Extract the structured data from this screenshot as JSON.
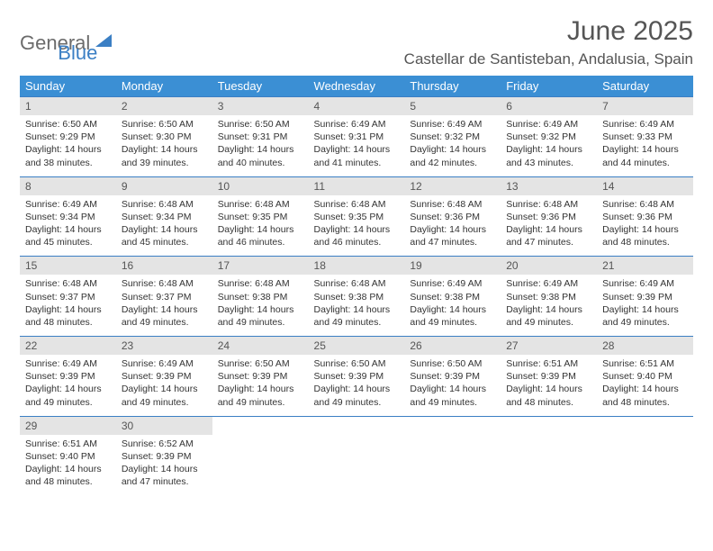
{
  "brand": {
    "part1": "General",
    "part2": "Blue"
  },
  "title": {
    "month": "June 2025",
    "location": "Castellar de Santisteban, Andalusia, Spain"
  },
  "colors": {
    "header_bg": "#3b8fd4",
    "header_fg": "#ffffff",
    "row_border": "#3b7fc4",
    "daynum_bg": "#e4e4e4",
    "brand_grey": "#6b6b6b",
    "brand_blue": "#3b7fc4",
    "page_bg": "#ffffff"
  },
  "layout": {
    "cols": 7,
    "rows": 5,
    "cell_font_pt": 10.5,
    "header_font_pt": 13
  },
  "weekdays": [
    "Sunday",
    "Monday",
    "Tuesday",
    "Wednesday",
    "Thursday",
    "Friday",
    "Saturday"
  ],
  "days": [
    {
      "n": "1",
      "sr": "6:50 AM",
      "ss": "9:29 PM",
      "dl": "14 hours and 38 minutes."
    },
    {
      "n": "2",
      "sr": "6:50 AM",
      "ss": "9:30 PM",
      "dl": "14 hours and 39 minutes."
    },
    {
      "n": "3",
      "sr": "6:50 AM",
      "ss": "9:31 PM",
      "dl": "14 hours and 40 minutes."
    },
    {
      "n": "4",
      "sr": "6:49 AM",
      "ss": "9:31 PM",
      "dl": "14 hours and 41 minutes."
    },
    {
      "n": "5",
      "sr": "6:49 AM",
      "ss": "9:32 PM",
      "dl": "14 hours and 42 minutes."
    },
    {
      "n": "6",
      "sr": "6:49 AM",
      "ss": "9:32 PM",
      "dl": "14 hours and 43 minutes."
    },
    {
      "n": "7",
      "sr": "6:49 AM",
      "ss": "9:33 PM",
      "dl": "14 hours and 44 minutes."
    },
    {
      "n": "8",
      "sr": "6:49 AM",
      "ss": "9:34 PM",
      "dl": "14 hours and 45 minutes."
    },
    {
      "n": "9",
      "sr": "6:48 AM",
      "ss": "9:34 PM",
      "dl": "14 hours and 45 minutes."
    },
    {
      "n": "10",
      "sr": "6:48 AM",
      "ss": "9:35 PM",
      "dl": "14 hours and 46 minutes."
    },
    {
      "n": "11",
      "sr": "6:48 AM",
      "ss": "9:35 PM",
      "dl": "14 hours and 46 minutes."
    },
    {
      "n": "12",
      "sr": "6:48 AM",
      "ss": "9:36 PM",
      "dl": "14 hours and 47 minutes."
    },
    {
      "n": "13",
      "sr": "6:48 AM",
      "ss": "9:36 PM",
      "dl": "14 hours and 47 minutes."
    },
    {
      "n": "14",
      "sr": "6:48 AM",
      "ss": "9:36 PM",
      "dl": "14 hours and 48 minutes."
    },
    {
      "n": "15",
      "sr": "6:48 AM",
      "ss": "9:37 PM",
      "dl": "14 hours and 48 minutes."
    },
    {
      "n": "16",
      "sr": "6:48 AM",
      "ss": "9:37 PM",
      "dl": "14 hours and 49 minutes."
    },
    {
      "n": "17",
      "sr": "6:48 AM",
      "ss": "9:38 PM",
      "dl": "14 hours and 49 minutes."
    },
    {
      "n": "18",
      "sr": "6:48 AM",
      "ss": "9:38 PM",
      "dl": "14 hours and 49 minutes."
    },
    {
      "n": "19",
      "sr": "6:49 AM",
      "ss": "9:38 PM",
      "dl": "14 hours and 49 minutes."
    },
    {
      "n": "20",
      "sr": "6:49 AM",
      "ss": "9:38 PM",
      "dl": "14 hours and 49 minutes."
    },
    {
      "n": "21",
      "sr": "6:49 AM",
      "ss": "9:39 PM",
      "dl": "14 hours and 49 minutes."
    },
    {
      "n": "22",
      "sr": "6:49 AM",
      "ss": "9:39 PM",
      "dl": "14 hours and 49 minutes."
    },
    {
      "n": "23",
      "sr": "6:49 AM",
      "ss": "9:39 PM",
      "dl": "14 hours and 49 minutes."
    },
    {
      "n": "24",
      "sr": "6:50 AM",
      "ss": "9:39 PM",
      "dl": "14 hours and 49 minutes."
    },
    {
      "n": "25",
      "sr": "6:50 AM",
      "ss": "9:39 PM",
      "dl": "14 hours and 49 minutes."
    },
    {
      "n": "26",
      "sr": "6:50 AM",
      "ss": "9:39 PM",
      "dl": "14 hours and 49 minutes."
    },
    {
      "n": "27",
      "sr": "6:51 AM",
      "ss": "9:39 PM",
      "dl": "14 hours and 48 minutes."
    },
    {
      "n": "28",
      "sr": "6:51 AM",
      "ss": "9:40 PM",
      "dl": "14 hours and 48 minutes."
    },
    {
      "n": "29",
      "sr": "6:51 AM",
      "ss": "9:40 PM",
      "dl": "14 hours and 48 minutes."
    },
    {
      "n": "30",
      "sr": "6:52 AM",
      "ss": "9:39 PM",
      "dl": "14 hours and 47 minutes."
    }
  ],
  "labels": {
    "sunrise": "Sunrise: ",
    "sunset": "Sunset: ",
    "daylight": "Daylight: "
  }
}
